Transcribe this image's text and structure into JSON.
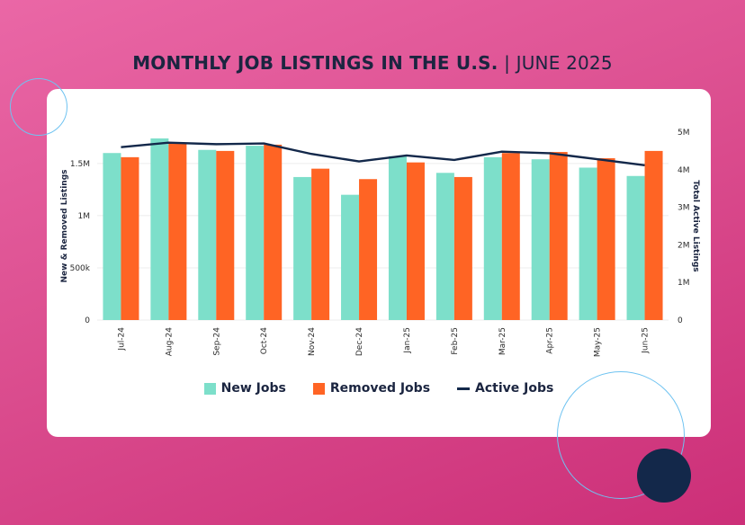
{
  "title": {
    "bold": "MONTHLY JOB LISTINGS IN THE U.S.",
    "separator": " | ",
    "light": "JUNE 2025"
  },
  "legend": {
    "new": "New Jobs",
    "removed": "Removed Jobs",
    "active": "Active Jobs"
  },
  "colors": {
    "new": "#7ddfca",
    "removed": "#ff6424",
    "active": "#13284a",
    "grid": "#ececec"
  },
  "chart_data": {
    "type": "bar",
    "categories": [
      "Jul-24",
      "Aug-24",
      "Sep-24",
      "Oct-24",
      "Nov-24",
      "Dec-24",
      "Jan-25",
      "Feb-25",
      "Mar-25",
      "Apr-25",
      "May-25",
      "Jun-25"
    ],
    "series": [
      {
        "name": "New Jobs",
        "type": "bar",
        "axis": "left",
        "values": [
          1600000,
          1740000,
          1630000,
          1670000,
          1370000,
          1200000,
          1570000,
          1410000,
          1560000,
          1540000,
          1460000,
          1380000
        ]
      },
      {
        "name": "Removed Jobs",
        "type": "bar",
        "axis": "left",
        "values": [
          1560000,
          1700000,
          1620000,
          1680000,
          1450000,
          1350000,
          1510000,
          1370000,
          1600000,
          1610000,
          1550000,
          1620000
        ]
      },
      {
        "name": "Active Jobs",
        "type": "line",
        "axis": "right",
        "values": [
          4600000,
          4720000,
          4680000,
          4700000,
          4420000,
          4220000,
          4380000,
          4260000,
          4480000,
          4440000,
          4280000,
          4120000
        ]
      }
    ],
    "ylabel": "New & Removed Listings",
    "y2label": "Total Active Listings",
    "ylim": [
      0,
      1800000
    ],
    "y2lim": [
      0,
      5000000
    ],
    "yticks": [
      0,
      500000,
      1000000,
      1500000
    ],
    "ytick_labels": [
      "0",
      "500k",
      "1M",
      "1.5M"
    ],
    "y2ticks": [
      0,
      1000000,
      2000000,
      3000000,
      4000000,
      5000000
    ],
    "y2tick_labels": [
      "0",
      "1M",
      "2M",
      "3M",
      "4M",
      "5M"
    ],
    "grid": true,
    "legend_position": "bottom"
  }
}
